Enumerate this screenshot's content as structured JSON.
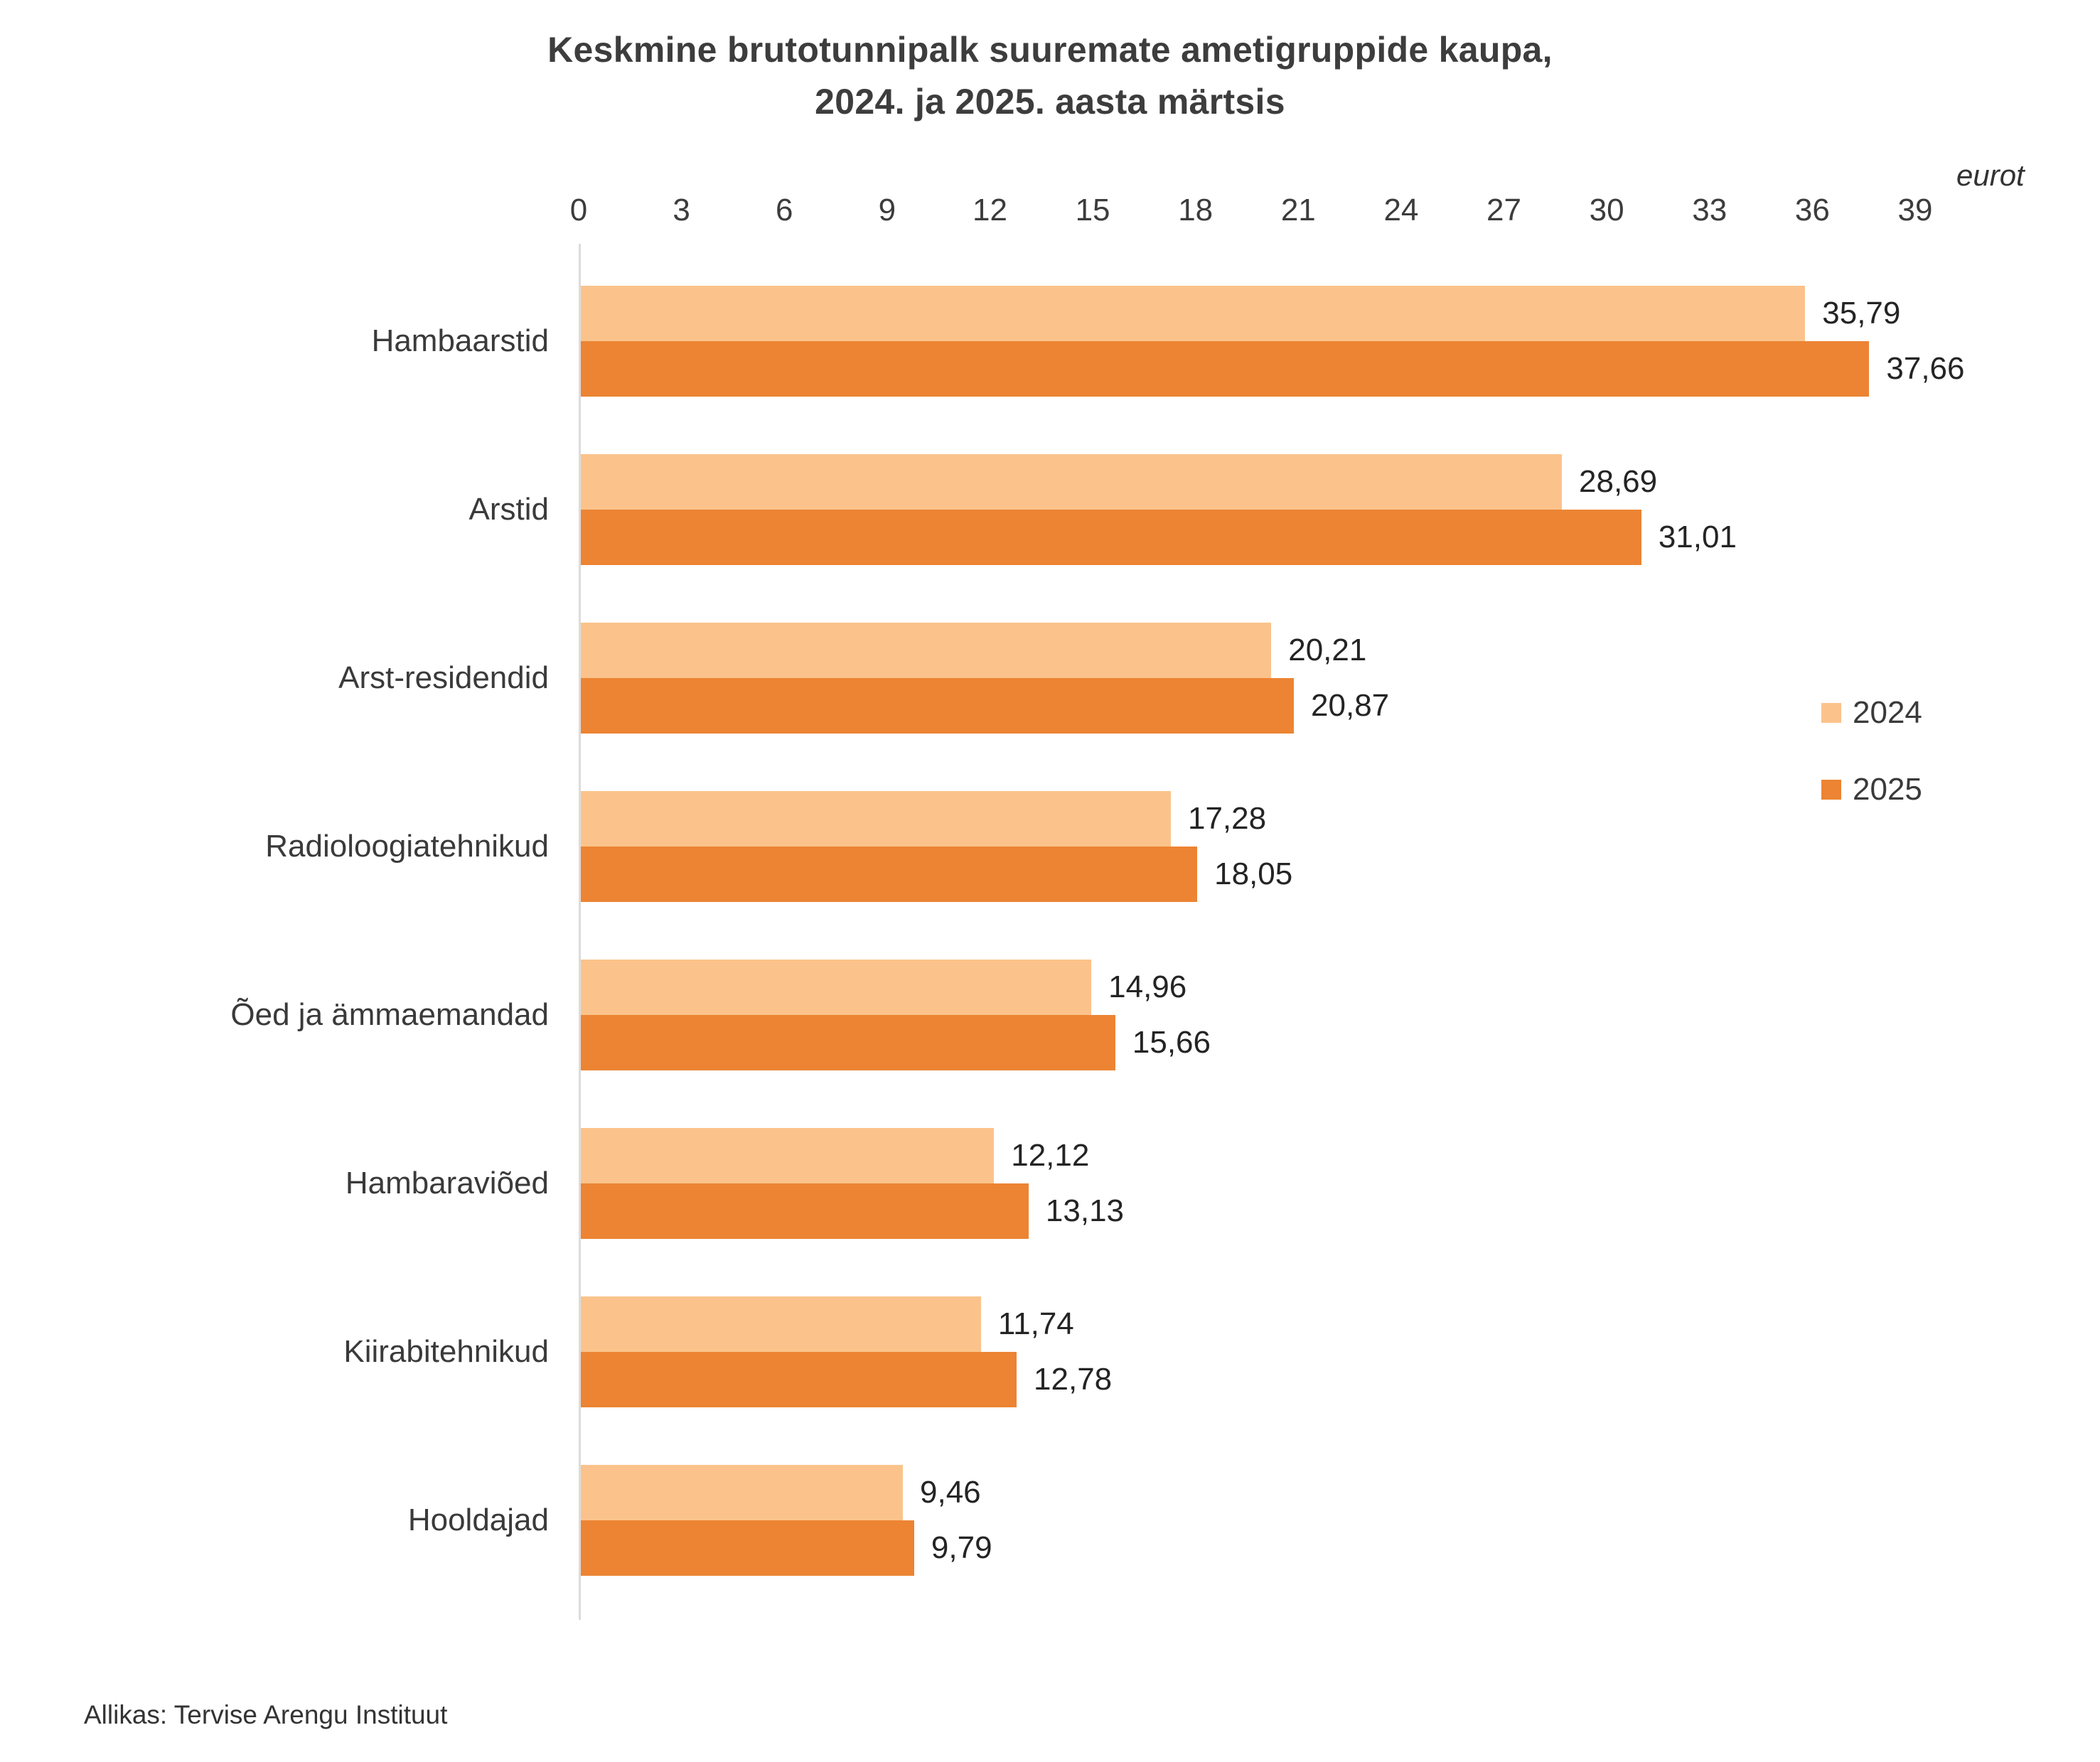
{
  "chart": {
    "title": "Keskmine brutotunnipalk suuremate ametigruppide kaupa,\n2024. ja 2025. aasta märtsis",
    "unit_label": "eurot",
    "source": "Allikas: Tervise Arengu Instituut"
  },
  "chart_data": {
    "type": "bar",
    "orientation": "horizontal",
    "title": "Keskmine brutotunnipalk suuremate ametigruppide kaupa, 2024. ja 2025. aasta märtsis",
    "xlabel": "eurot",
    "ylabel": "",
    "xlim": [
      0,
      39
    ],
    "x_ticks": [
      0,
      3,
      6,
      9,
      12,
      15,
      18,
      21,
      24,
      27,
      30,
      33,
      36,
      39
    ],
    "grid": false,
    "legend_position": "right",
    "value_label_decimal_separator": ",",
    "categories": [
      "Hambaarstid",
      "Arstid",
      "Arst-residendid",
      "Radioloogiatehnikud",
      "Õed ja ämmaemandad",
      "Hambaraviõed",
      "Kiirabitehnikud",
      "Hooldajad"
    ],
    "series": [
      {
        "name": "2024",
        "color": "#fbc38b",
        "values": [
          35.79,
          28.69,
          20.21,
          17.28,
          14.96,
          12.12,
          11.74,
          9.46
        ]
      },
      {
        "name": "2025",
        "color": "#ec8433",
        "values": [
          37.66,
          31.01,
          20.87,
          18.05,
          15.66,
          13.13,
          12.78,
          9.79
        ]
      }
    ],
    "source": "Allikas: Tervise Arengu Instituut"
  }
}
